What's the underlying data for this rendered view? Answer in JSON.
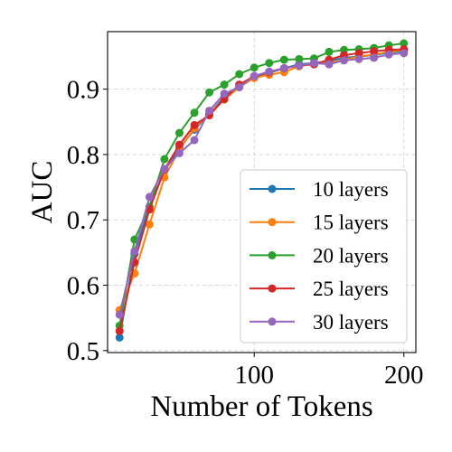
{
  "chart_data": {
    "type": "line",
    "title": "",
    "xlabel": "Number of Tokens",
    "ylabel": "AUC",
    "xlim": [
      2,
      208
    ],
    "ylim": [
      0.497,
      0.988
    ],
    "xticks": [
      100,
      200
    ],
    "xtick_labels": [
      "100",
      "200"
    ],
    "yticks": [
      0.5,
      0.6,
      0.7,
      0.8,
      0.9
    ],
    "ytick_labels": [
      "0.5",
      "0.6",
      "0.7",
      "0.8",
      "0.9"
    ],
    "grid": true,
    "legend_position": "lower-right",
    "x": [
      10,
      20,
      30,
      40,
      50,
      60,
      70,
      80,
      90,
      100,
      110,
      120,
      130,
      140,
      150,
      160,
      170,
      180,
      190,
      200
    ],
    "series": [
      {
        "name": "10 layers",
        "color": "#1f77b4",
        "values": [
          0.52,
          0.648,
          0.72,
          0.775,
          0.81,
          0.838,
          0.862,
          0.888,
          0.905,
          0.918,
          0.925,
          0.932,
          0.938,
          0.94,
          0.943,
          0.948,
          0.95,
          0.952,
          0.956,
          0.958
        ]
      },
      {
        "name": "15 layers",
        "color": "#ff7f0e",
        "values": [
          0.562,
          0.618,
          0.693,
          0.765,
          0.808,
          0.84,
          0.863,
          0.884,
          0.903,
          0.917,
          0.922,
          0.926,
          0.935,
          0.939,
          0.94,
          0.945,
          0.95,
          0.953,
          0.957,
          0.96
        ]
      },
      {
        "name": "20 layers",
        "color": "#2ca02c",
        "values": [
          0.538,
          0.67,
          0.72,
          0.793,
          0.833,
          0.864,
          0.895,
          0.907,
          0.923,
          0.933,
          0.94,
          0.945,
          0.946,
          0.947,
          0.957,
          0.96,
          0.961,
          0.963,
          0.967,
          0.97
        ]
      },
      {
        "name": "25 layers",
        "color": "#d62728",
        "values": [
          0.53,
          0.635,
          0.716,
          0.777,
          0.815,
          0.845,
          0.86,
          0.885,
          0.907,
          0.92,
          0.926,
          0.932,
          0.936,
          0.938,
          0.945,
          0.952,
          0.955,
          0.958,
          0.96,
          0.961
        ]
      },
      {
        "name": "30 layers",
        "color": "#9467bd",
        "values": [
          0.555,
          0.652,
          0.735,
          0.778,
          0.802,
          0.822,
          0.867,
          0.893,
          0.903,
          0.92,
          0.927,
          0.932,
          0.936,
          0.94,
          0.938,
          0.944,
          0.946,
          0.948,
          0.953,
          0.955
        ]
      }
    ]
  }
}
